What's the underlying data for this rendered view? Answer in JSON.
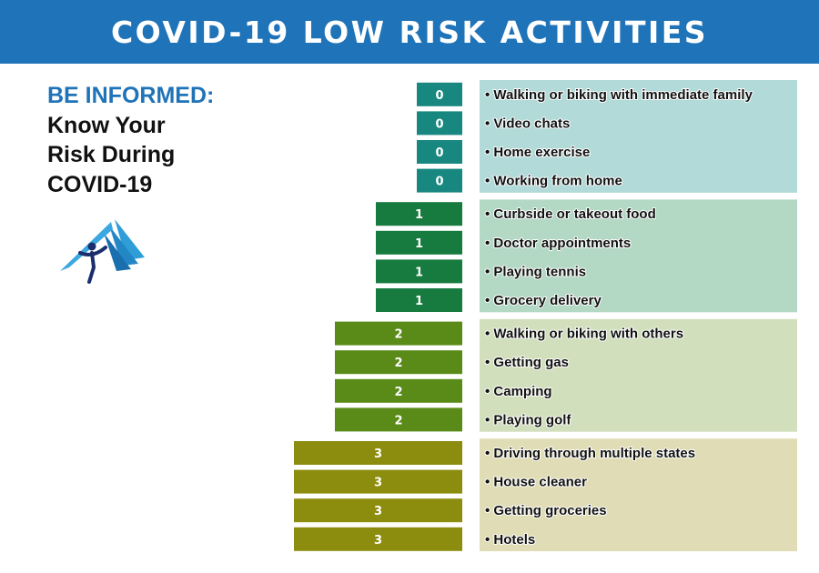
{
  "header": {
    "title": "COVID-19 LOW RISK ACTIVITIES"
  },
  "sidebar": {
    "heading": "BE INFORMED:",
    "lines": [
      "Know Your",
      "Risk During",
      "COVID-19"
    ]
  },
  "logo": {
    "icon": "runner-over-book-logo-icon"
  },
  "chart_data": {
    "type": "bar",
    "orientation": "horizontal",
    "title": "COVID-19 LOW RISK ACTIVITIES",
    "xlabel": "",
    "ylabel": "",
    "categories": [
      "Walking or biking with immediate family",
      "Video chats",
      "Home exercise",
      "Working from home",
      "Curbside or takeout food",
      "Doctor appointments",
      "Playing tennis",
      "Grocery delivery",
      "Walking or biking with others",
      "Getting gas",
      "Camping",
      "Playing golf",
      "Driving through multiple states",
      "House cleaner",
      "Getting groceries",
      "Hotels"
    ],
    "values": [
      0,
      0,
      0,
      0,
      1,
      1,
      1,
      1,
      2,
      2,
      2,
      2,
      3,
      3,
      3,
      3
    ],
    "bullet": "•",
    "risk_colors": {
      "0": {
        "bar": "#17877f",
        "panel": "#b2dad8"
      },
      "1": {
        "bar": "#177a3e",
        "panel": "#b3d8c4"
      },
      "2": {
        "bar": "#5a8a18",
        "panel": "#d1dfbc"
      },
      "3": {
        "bar": "#8c8c0f",
        "panel": "#e0ddb6"
      }
    },
    "grid": false,
    "legend": "none"
  }
}
